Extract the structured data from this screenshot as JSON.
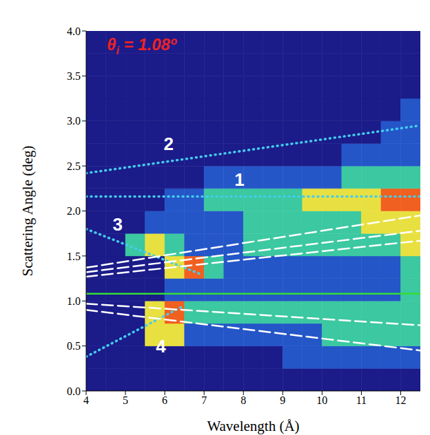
{
  "chart_data": {
    "type": "heatmap_lines",
    "title": "θi = 1.08º",
    "x_label": "Wavelength (Å)",
    "y_label": "Scattering Angle (deg)",
    "xlim": [
      4,
      12.5
    ],
    "xticks": [
      4,
      5,
      6,
      7,
      8,
      9,
      10,
      11,
      12
    ],
    "ylim": [
      0,
      4
    ],
    "yticks": [
      {
        "value": 0,
        "label": "0.0"
      },
      0.5,
      {
        "value": 1,
        "label": "1.0"
      },
      1.5,
      {
        "value": 2,
        "label": "2.0"
      },
      2.5,
      {
        "value": 3,
        "label": "3.0"
      },
      3.5,
      {
        "value": 4,
        "label": "4.0"
      }
    ],
    "heatmap": {
      "x_edges": [
        4,
        4.5,
        5,
        5.5,
        6,
        6.5,
        7,
        7.5,
        8,
        8.5,
        9,
        9.5,
        10,
        10.5,
        11,
        11.5,
        12,
        12.5
      ],
      "y_edges": [
        0,
        0.25,
        0.5,
        0.75,
        1,
        1.25,
        1.5,
        1.75,
        2,
        2.25,
        2.5,
        2.75,
        3,
        3.25,
        3.5,
        3.75,
        4
      ],
      "colors": [
        "#1b1b8a",
        "#2456c8",
        "#3cc8a0",
        "#e8e040",
        "#f06020"
      ],
      "values": [
        [
          0,
          0,
          0,
          0,
          0,
          0,
          0,
          0,
          0,
          0,
          0,
          0,
          0,
          0,
          0,
          0,
          0
        ],
        [
          0,
          0,
          0,
          0,
          0,
          0,
          0,
          0,
          0,
          0,
          1,
          1,
          1,
          1,
          1,
          1,
          1
        ],
        [
          0,
          0,
          0,
          3,
          3,
          1,
          1,
          1,
          1,
          1,
          1,
          1,
          2,
          2,
          2,
          2,
          2
        ],
        [
          0,
          0,
          0,
          3,
          4,
          2,
          2,
          2,
          2,
          2,
          2,
          2,
          2,
          2,
          2,
          2,
          2
        ],
        [
          0,
          0,
          0,
          0,
          1,
          1,
          1,
          1,
          1,
          1,
          1,
          1,
          1,
          1,
          1,
          1,
          2
        ],
        [
          0,
          0,
          0,
          0,
          3,
          4,
          2,
          1,
          1,
          1,
          1,
          1,
          1,
          1,
          1,
          1,
          2
        ],
        [
          0,
          0,
          2,
          3,
          2,
          1,
          1,
          1,
          2,
          2,
          2,
          2,
          2,
          2,
          2,
          2,
          3
        ],
        [
          0,
          0,
          0,
          1,
          1,
          1,
          1,
          1,
          2,
          2,
          2,
          2,
          2,
          2,
          3,
          3,
          3
        ],
        [
          0,
          0,
          0,
          0,
          1,
          1,
          2,
          2,
          2,
          2,
          2,
          3,
          3,
          3,
          3,
          4,
          4
        ],
        [
          0,
          0,
          0,
          0,
          0,
          0,
          1,
          1,
          1,
          1,
          1,
          1,
          1,
          2,
          2,
          2,
          2
        ],
        [
          0,
          0,
          0,
          0,
          0,
          0,
          0,
          0,
          0,
          0,
          0,
          0,
          0,
          1,
          1,
          1,
          1
        ],
        [
          0,
          0,
          0,
          0,
          0,
          0,
          0,
          0,
          0,
          0,
          0,
          0,
          0,
          0,
          0,
          1,
          1
        ],
        [
          0,
          0,
          0,
          0,
          0,
          0,
          0,
          0,
          0,
          0,
          0,
          0,
          0,
          0,
          0,
          0,
          1
        ],
        [
          0,
          0,
          0,
          0,
          0,
          0,
          0,
          0,
          0,
          0,
          0,
          0,
          0,
          0,
          0,
          0,
          0
        ],
        [
          0,
          0,
          0,
          0,
          0,
          0,
          0,
          0,
          0,
          0,
          0,
          0,
          0,
          0,
          0,
          0,
          0
        ],
        [
          0,
          0,
          0,
          0,
          0,
          0,
          0,
          0,
          0,
          0,
          0,
          0,
          0,
          0,
          0,
          0,
          0
        ]
      ]
    },
    "series": [
      {
        "color": "#33dd33",
        "line_style": "solid",
        "x": [
          4,
          12.5
        ],
        "values": [
          1.08,
          1.08
        ]
      },
      {
        "color": "#44ccee",
        "line_style": "dotted",
        "x": [
          4,
          12.5
        ],
        "values": [
          2.16,
          2.16
        ]
      },
      {
        "color": "#44ccee",
        "line_style": "dotted",
        "x": [
          4,
          12.5
        ],
        "values": [
          2.42,
          2.95
        ]
      },
      {
        "color": "#44ccee",
        "line_style": "dotted",
        "x": [
          4,
          6.9
        ],
        "values": [
          1.8,
          1.3
        ]
      },
      {
        "color": "#44ccee",
        "line_style": "dotted",
        "x": [
          4,
          6.5
        ],
        "values": [
          0.38,
          0.95
        ]
      },
      {
        "color": "#ffffff",
        "line_style": "dashed",
        "x": [
          4,
          12.5
        ],
        "values": [
          1.37,
          1.95
        ]
      },
      {
        "color": "#ffffff",
        "line_style": "dashed",
        "x": [
          4,
          12.5
        ],
        "values": [
          1.32,
          1.78
        ]
      },
      {
        "color": "#ffffff",
        "line_style": "dashed",
        "x": [
          4,
          12.5
        ],
        "values": [
          1.27,
          1.67
        ]
      },
      {
        "color": "#ffffff",
        "line_style": "dashed",
        "x": [
          4,
          12.5
        ],
        "values": [
          0.97,
          0.73
        ]
      },
      {
        "color": "#ffffff",
        "line_style": "dashed",
        "x": [
          4,
          12.5
        ],
        "values": [
          0.9,
          0.45
        ]
      }
    ],
    "annotations": [
      {
        "text": "1",
        "x": 7.9,
        "y": 2.35
      },
      {
        "text": "2",
        "x": 6.1,
        "y": 2.75
      },
      {
        "text": "3",
        "x": 4.8,
        "y": 1.85
      },
      {
        "text": "4",
        "x": 5.9,
        "y": 0.5
      }
    ]
  }
}
